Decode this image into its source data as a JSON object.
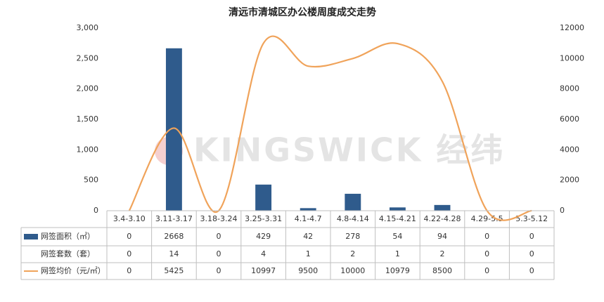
{
  "chart_data": {
    "type": "bar-line-table",
    "title": "清远市清城区办公楼周度成交走势",
    "watermark": "KINGSWICK 经纬",
    "categories": [
      "3.4-3.10",
      "3.11-3.17",
      "3.18-3.24",
      "3.25-3.31",
      "4.1-4.7",
      "4.8-4.14",
      "4.15-4.21",
      "4.22-4.28",
      "4.29-5.5",
      "5.3-5.12"
    ],
    "series": [
      {
        "name": "网签面积（㎡）",
        "type": "bar",
        "color": "#2f5b8c",
        "values": [
          0,
          2668,
          0,
          429,
          42,
          278,
          54,
          94,
          0,
          0
        ]
      },
      {
        "name": "网签套数（套）",
        "type": "table",
        "values": [
          0,
          14,
          0,
          4,
          1,
          2,
          1,
          2,
          0,
          0
        ]
      },
      {
        "name": "网签均价（元/㎡）",
        "type": "line",
        "axis": "y2",
        "color": "#f0a35a",
        "values": [
          0,
          5425,
          0,
          10997,
          9500,
          10000,
          10979,
          8500,
          0,
          0
        ]
      }
    ],
    "ylim": [
      0,
      3000
    ],
    "yticks": [
      0,
      500,
      {
        "value": 1000,
        "label": "1,000"
      },
      {
        "value": 1500,
        "label": "1,500"
      },
      {
        "value": 2000,
        "label": "2,000"
      },
      {
        "value": 2500,
        "label": "2,500"
      },
      {
        "value": 3000,
        "label": "3,000"
      }
    ],
    "y2lim": [
      0,
      12000
    ],
    "y2ticks": [
      0,
      2000,
      4000,
      6000,
      8000,
      10000,
      12000
    ],
    "grid": false
  }
}
